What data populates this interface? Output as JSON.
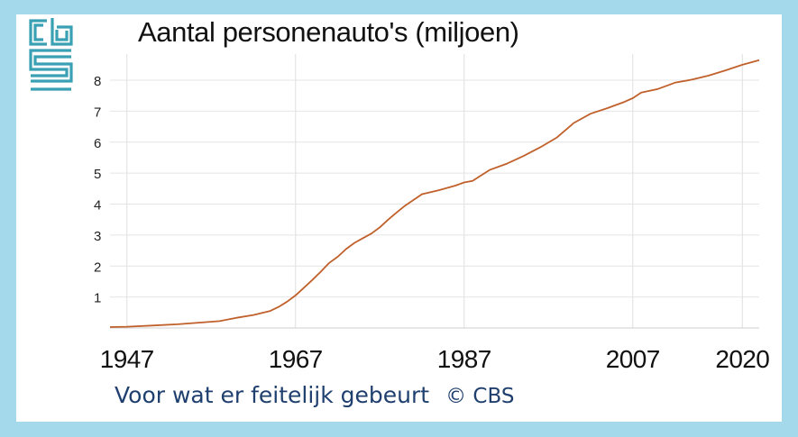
{
  "colors": {
    "background": "#a3d9ea",
    "panel": "#ffffff",
    "line": "#c0602a",
    "logo": "#3aa0b4",
    "caption": "#1f3f6e",
    "grid": "#e4e4e4"
  },
  "logo": {
    "icon": "cbs-logo-icon"
  },
  "chart_data": {
    "type": "line",
    "title": "Aantal personenauto's (miljoen)",
    "xlabel": "",
    "ylabel": "",
    "x_ticks": [
      "1947",
      "1967",
      "1987",
      "2007",
      "2020"
    ],
    "y_ticks": [
      "1",
      "2",
      "3",
      "4",
      "5",
      "6",
      "7",
      "8"
    ],
    "xlim": [
      1945,
      2022
    ],
    "ylim": [
      0,
      8.7
    ],
    "grid": true,
    "series": [
      {
        "x": [
          1945,
          1947,
          1950,
          1953,
          1955,
          1958,
          1960,
          1962,
          1964,
          1965,
          1966,
          1967,
          1968,
          1969,
          1970,
          1971,
          1972,
          1973,
          1974,
          1975,
          1976,
          1977,
          1978,
          1979,
          1980,
          1982,
          1984,
          1986,
          1987,
          1988,
          1990,
          1992,
          1994,
          1996,
          1998,
          2000,
          2002,
          2004,
          2006,
          2007,
          2008,
          2010,
          2012,
          2014,
          2016,
          2018,
          2020,
          2022
        ],
        "y": [
          0.03,
          0.04,
          0.08,
          0.12,
          0.16,
          0.22,
          0.33,
          0.42,
          0.55,
          0.68,
          0.85,
          1.05,
          1.3,
          1.55,
          1.82,
          2.1,
          2.3,
          2.55,
          2.75,
          2.9,
          3.05,
          3.25,
          3.5,
          3.73,
          3.95,
          4.32,
          4.45,
          4.6,
          4.7,
          4.75,
          5.1,
          5.3,
          5.55,
          5.83,
          6.15,
          6.62,
          6.92,
          7.1,
          7.3,
          7.42,
          7.6,
          7.72,
          7.92,
          8.02,
          8.15,
          8.32,
          8.5,
          8.65
        ]
      }
    ]
  },
  "caption": {
    "text": "Voor wat er feitelijk gebeurt",
    "copyright": "© CBS"
  }
}
